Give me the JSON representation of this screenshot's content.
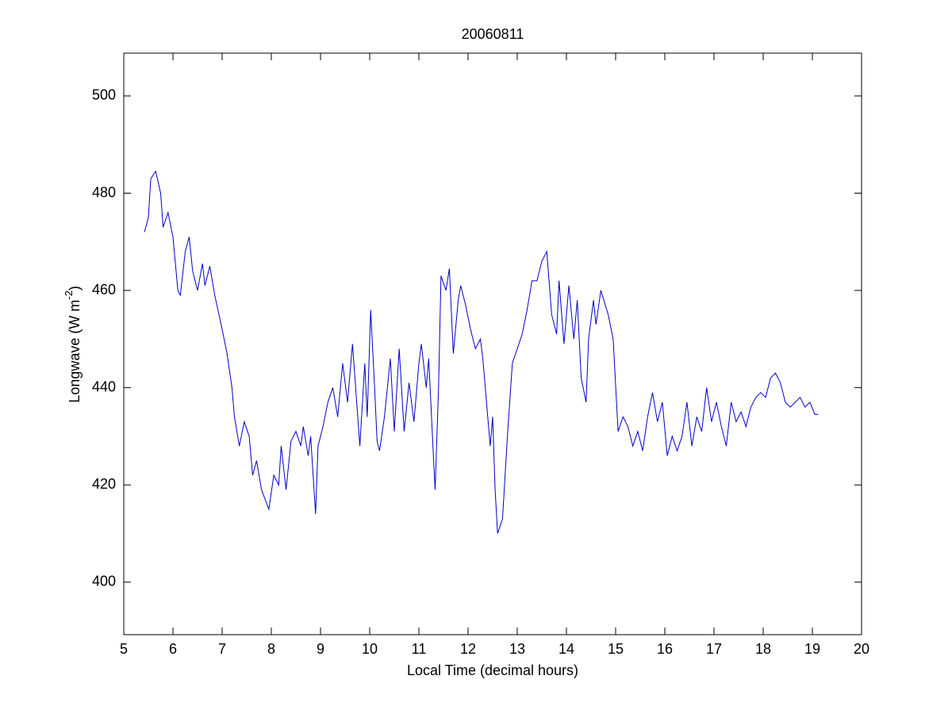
{
  "chart_data": {
    "type": "line",
    "title": "20060811",
    "xlabel": "Local Time (decimal hours)",
    "ylabel": {
      "text": "Longwave (W m",
      "superscript": "-2",
      "suffix": ")"
    },
    "xlim": [
      5,
      20
    ],
    "xticks": [
      5,
      6,
      7,
      8,
      9,
      10,
      11,
      12,
      13,
      14,
      15,
      16,
      17,
      18,
      19,
      20
    ],
    "ylim": [
      389.2,
      508.8
    ],
    "yticks": [
      400,
      420,
      440,
      460,
      480,
      500
    ],
    "grid": false,
    "x": [
      5.42,
      5.5,
      5.55,
      5.65,
      5.75,
      5.8,
      5.9,
      6.0,
      6.1,
      6.15,
      6.25,
      6.33,
      6.4,
      6.5,
      6.6,
      6.65,
      6.75,
      6.85,
      7.0,
      7.1,
      7.2,
      7.25,
      7.35,
      7.45,
      7.55,
      7.62,
      7.7,
      7.8,
      7.95,
      8.05,
      8.15,
      8.2,
      8.3,
      8.4,
      8.5,
      8.6,
      8.65,
      8.75,
      8.8,
      8.9,
      8.95,
      9.05,
      9.15,
      9.25,
      9.35,
      9.45,
      9.55,
      9.65,
      9.8,
      9.9,
      9.95,
      10.02,
      10.1,
      10.15,
      10.2,
      10.3,
      10.42,
      10.5,
      10.6,
      10.7,
      10.8,
      10.9,
      11.0,
      11.05,
      11.15,
      11.2,
      11.3,
      11.33,
      11.4,
      11.45,
      11.55,
      11.62,
      11.7,
      11.8,
      11.85,
      11.95,
      12.05,
      12.15,
      12.25,
      12.3,
      12.45,
      12.5,
      12.55,
      12.6,
      12.7,
      12.8,
      12.9,
      13.0,
      13.1,
      13.2,
      13.3,
      13.4,
      13.5,
      13.6,
      13.7,
      13.8,
      13.85,
      13.95,
      14.05,
      14.15,
      14.22,
      14.3,
      14.4,
      14.45,
      14.55,
      14.6,
      14.7,
      14.85,
      14.95,
      15.05,
      15.15,
      15.25,
      15.35,
      15.45,
      15.55,
      15.65,
      15.75,
      15.85,
      15.95,
      16.05,
      16.15,
      16.25,
      16.35,
      16.45,
      16.55,
      16.65,
      16.75,
      16.85,
      16.95,
      17.05,
      17.15,
      17.25,
      17.35,
      17.45,
      17.55,
      17.65,
      17.75,
      17.85,
      17.95,
      18.05,
      18.15,
      18.25,
      18.35,
      18.45,
      18.55,
      18.65,
      18.75,
      18.85,
      18.95,
      19.05,
      19.12
    ],
    "series": [
      {
        "color": "#0000cc",
        "values": [
          472,
          475,
          483,
          484.5,
          480,
          473,
          476,
          471,
          460,
          459,
          468,
          471,
          464,
          460,
          465.5,
          461,
          465,
          459,
          452,
          447,
          440,
          434,
          428,
          433,
          430,
          422,
          425,
          419,
          415,
          422,
          420,
          428,
          419,
          429,
          431,
          428,
          432,
          426,
          430,
          414,
          428,
          432,
          437,
          440,
          434,
          445,
          437,
          449,
          428,
          445,
          434,
          456,
          440,
          429,
          427,
          434,
          446,
          431,
          448,
          431,
          441,
          433,
          445,
          449,
          440,
          446,
          425,
          419,
          440,
          463,
          460,
          464.5,
          447,
          458,
          461,
          457,
          452,
          448,
          450,
          446,
          428,
          434,
          419,
          410,
          413,
          430,
          445,
          448,
          451,
          456,
          462,
          462,
          466,
          468,
          455,
          451,
          462,
          449,
          461,
          450,
          458,
          442,
          437,
          450,
          458,
          453,
          460,
          455,
          450,
          431,
          434,
          432,
          428,
          431,
          427,
          434,
          439,
          433,
          437,
          426,
          430,
          427,
          430,
          437,
          428,
          434,
          431,
          440,
          433,
          437,
          432,
          428,
          437,
          433,
          435,
          432,
          436,
          438,
          439,
          438,
          442,
          443,
          441,
          437,
          436,
          437,
          438,
          436,
          437,
          434.5,
          434.5
        ]
      }
    ]
  }
}
